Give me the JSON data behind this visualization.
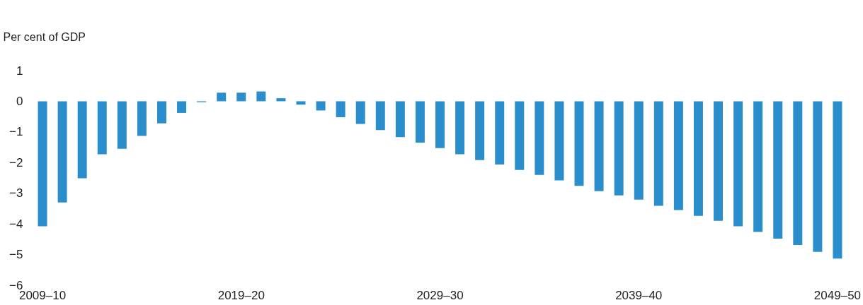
{
  "chart_data": {
    "type": "bar",
    "ylabel": "Per cent of GDP",
    "categories": [
      "2009–10",
      null,
      null,
      null,
      null,
      null,
      null,
      null,
      null,
      null,
      "2019–20",
      null,
      null,
      null,
      null,
      null,
      null,
      null,
      null,
      null,
      "2029–30",
      null,
      null,
      null,
      null,
      null,
      null,
      null,
      null,
      null,
      "2039–40",
      null,
      null,
      null,
      null,
      null,
      null,
      null,
      null,
      null,
      "2049–50"
    ],
    "values": [
      -4.08,
      -3.3,
      -2.51,
      -1.73,
      -1.55,
      -1.13,
      -0.72,
      -0.38,
      -0.03,
      0.28,
      0.28,
      0.32,
      0.1,
      -0.11,
      -0.3,
      -0.52,
      -0.74,
      -0.94,
      -1.17,
      -1.35,
      -1.53,
      -1.73,
      -1.92,
      -2.06,
      -2.24,
      -2.4,
      -2.58,
      -2.76,
      -2.93,
      -3.07,
      -3.21,
      -3.41,
      -3.55,
      -3.74,
      -3.9,
      -4.08,
      -4.26,
      -4.48,
      -4.69,
      -4.91,
      -5.13
    ],
    "color": "#2b8ecc",
    "ylim": [
      -6,
      1
    ],
    "yticks": [
      -6,
      -5,
      -4,
      -3,
      -2,
      -1,
      0,
      1
    ]
  }
}
